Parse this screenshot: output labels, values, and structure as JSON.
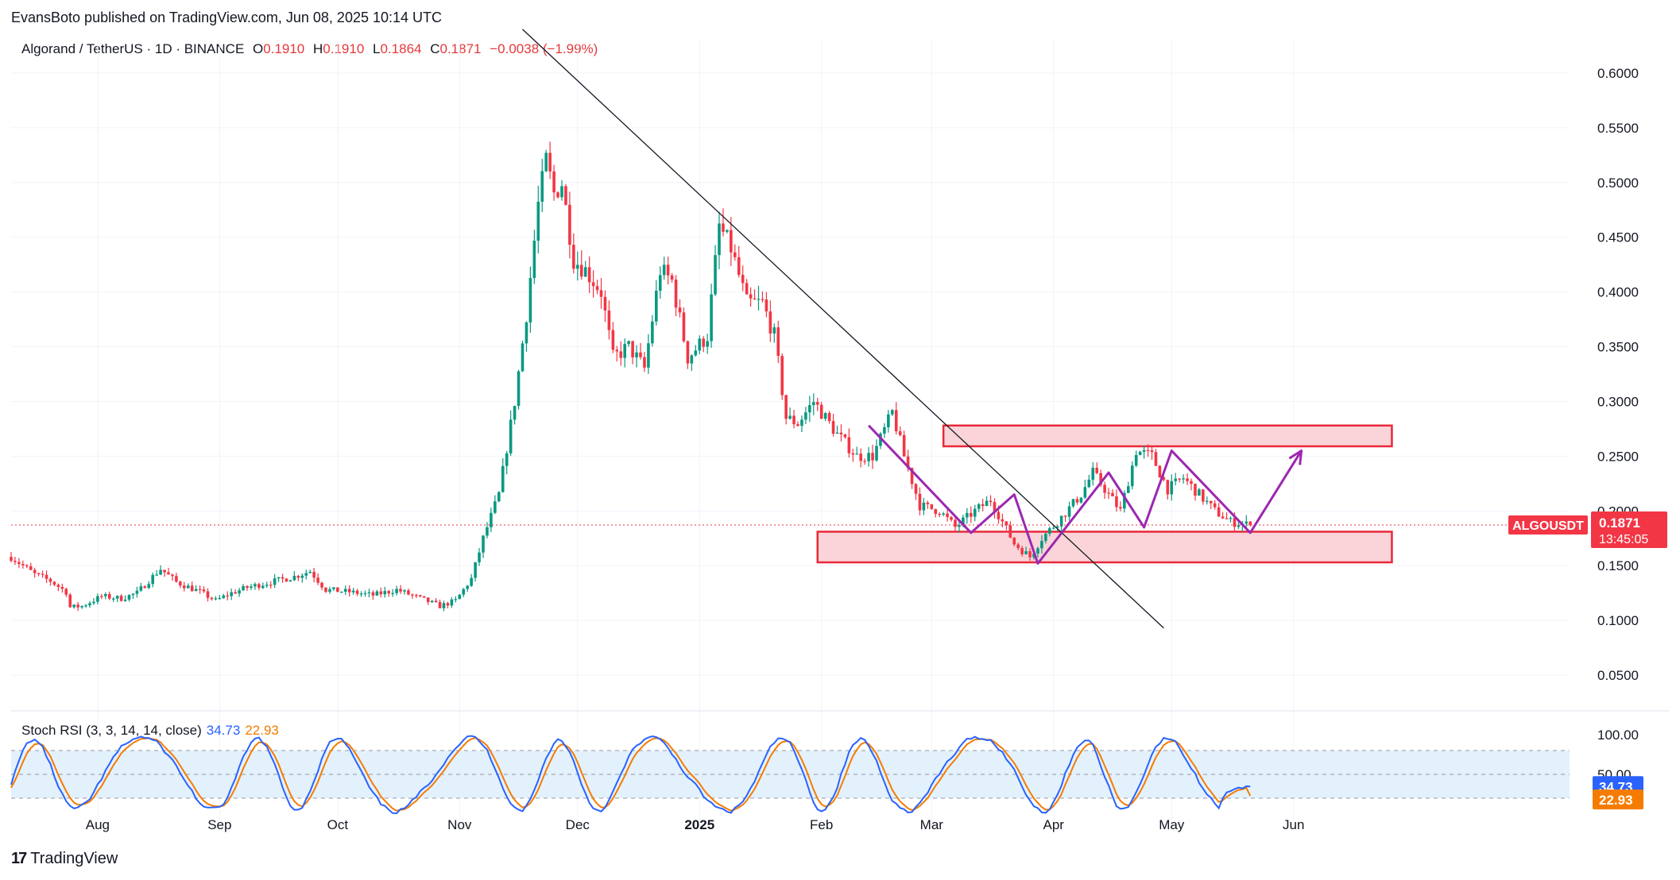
{
  "publisher": "EvansBoto published on TradingView.com, Jun 08, 2025 10:14 UTC",
  "symbol": {
    "name": "Algorand / TetherUS · 1D · BINANCE",
    "open_label": "O",
    "open": "0.1910",
    "high_label": "H",
    "high": "0.1910",
    "low_label": "L",
    "low": "0.1864",
    "close_label": "C",
    "close": "0.1871",
    "change": "−0.0038 (−1.99%)"
  },
  "price_tag": {
    "ticker": "ALGOUSDT",
    "price": "0.1871",
    "countdown": "13:45:05"
  },
  "rsi_legend": {
    "name": "Stoch RSI (3, 3, 14, 14, close)",
    "k": "34.73",
    "d": "22.93"
  },
  "rsi_tags": {
    "k": "34.73",
    "d": "22.93"
  },
  "footer": "TradingView",
  "colors": {
    "up": "#089981",
    "down": "#f23645",
    "zone_fill": "#fad4d8",
    "zone_stroke": "#e8283a",
    "pattern": "#9c27b0",
    "k_line": "#2962ff",
    "d_line": "#f57c00",
    "rsi_band": "#e3f1fd"
  },
  "chart_data": [
    {
      "type": "candlestick",
      "title": "Algorand / TetherUS · 1D · BINANCE",
      "ylim": [
        0.02,
        0.63
      ],
      "yticks": [
        "0.0500",
        "0.1000",
        "0.1500",
        "0.2000",
        "0.2500",
        "0.3000",
        "0.3500",
        "0.4000",
        "0.4500",
        "0.5000",
        "0.5500",
        "0.6000"
      ],
      "ytick_values": [
        0.05,
        0.1,
        0.15,
        0.2,
        0.25,
        0.3,
        0.35,
        0.4,
        0.45,
        0.5,
        0.55,
        0.6
      ],
      "xticks": [
        "Aug",
        "Sep",
        "Oct",
        "Nov",
        "Dec",
        "2025",
        "Feb",
        "Mar",
        "Apr",
        "May",
        "Jun"
      ],
      "xtick_days": [
        22,
        53,
        83,
        114,
        144,
        175,
        206,
        234,
        265,
        295,
        326
      ],
      "day_range": [
        0,
        358
      ],
      "anchors": [
        [
          0,
          0.158
        ],
        [
          6,
          0.142
        ],
        [
          10,
          0.136
        ],
        [
          14,
          0.126
        ],
        [
          15,
          0.112
        ],
        [
          18,
          0.113
        ],
        [
          23,
          0.122
        ],
        [
          28,
          0.12
        ],
        [
          32,
          0.125
        ],
        [
          36,
          0.14
        ],
        [
          38,
          0.147
        ],
        [
          42,
          0.135
        ],
        [
          48,
          0.126
        ],
        [
          52,
          0.118
        ],
        [
          56,
          0.125
        ],
        [
          60,
          0.13
        ],
        [
          66,
          0.135
        ],
        [
          72,
          0.14
        ],
        [
          76,
          0.145
        ],
        [
          80,
          0.128
        ],
        [
          86,
          0.126
        ],
        [
          92,
          0.123
        ],
        [
          98,
          0.128
        ],
        [
          104,
          0.12
        ],
        [
          109,
          0.113
        ],
        [
          113,
          0.118
        ],
        [
          117,
          0.138
        ],
        [
          120,
          0.175
        ],
        [
          124,
          0.215
        ],
        [
          128,
          0.3
        ],
        [
          131,
          0.38
        ],
        [
          134,
          0.48
        ],
        [
          136,
          0.52
        ],
        [
          138,
          0.49
        ],
        [
          140,
          0.5
        ],
        [
          143,
          0.43
        ],
        [
          146,
          0.42
        ],
        [
          150,
          0.4
        ],
        [
          153,
          0.34
        ],
        [
          157,
          0.35
        ],
        [
          161,
          0.33
        ],
        [
          165,
          0.42
        ],
        [
          168,
          0.41
        ],
        [
          172,
          0.34
        ],
        [
          177,
          0.36
        ],
        [
          180,
          0.46
        ],
        [
          183,
          0.44
        ],
        [
          187,
          0.39
        ],
        [
          191,
          0.39
        ],
        [
          194,
          0.36
        ],
        [
          197,
          0.285
        ],
        [
          200,
          0.28
        ],
        [
          204,
          0.3
        ],
        [
          210,
          0.27
        ],
        [
          215,
          0.25
        ],
        [
          219,
          0.25
        ],
        [
          224,
          0.29
        ],
        [
          227,
          0.25
        ],
        [
          231,
          0.205
        ],
        [
          236,
          0.2
        ],
        [
          240,
          0.185
        ],
        [
          245,
          0.2
        ],
        [
          249,
          0.21
        ],
        [
          255,
          0.17
        ],
        [
          259,
          0.158
        ],
        [
          262,
          0.175
        ],
        [
          266,
          0.19
        ],
        [
          272,
          0.215
        ],
        [
          275,
          0.235
        ],
        [
          279,
          0.215
        ],
        [
          282,
          0.2
        ],
        [
          286,
          0.255
        ],
        [
          290,
          0.25
        ],
        [
          294,
          0.22
        ],
        [
          298,
          0.23
        ],
        [
          302,
          0.215
        ],
        [
          306,
          0.2
        ],
        [
          310,
          0.19
        ],
        [
          315,
          0.1871
        ]
      ],
      "last_close": 0.1871
    },
    {
      "type": "line",
      "title": "Stoch RSI (3, 3, 14, 14, close)",
      "ylim": [
        0,
        100
      ],
      "yticks": [
        "100.00",
        "50.00"
      ],
      "bands": [
        20,
        50,
        80
      ],
      "series": [
        {
          "name": "K",
          "last": 34.73
        },
        {
          "name": "D",
          "last": 22.93
        }
      ]
    }
  ],
  "annotations": {
    "trendline": [
      [
        130,
        0.64
      ],
      [
        293,
        0.093
      ]
    ],
    "resistance_zone": [
      237,
      0.259,
      351,
      0.278
    ],
    "support_zone": [
      205,
      0.153,
      351,
      0.181
    ],
    "zigzag": [
      [
        218,
        0.278
      ],
      [
        244,
        0.18
      ],
      [
        255,
        0.215
      ],
      [
        261,
        0.152
      ],
      [
        279,
        0.235
      ],
      [
        288,
        0.185
      ],
      [
        295,
        0.255
      ],
      [
        315,
        0.18
      ],
      [
        328,
        0.255
      ]
    ]
  }
}
